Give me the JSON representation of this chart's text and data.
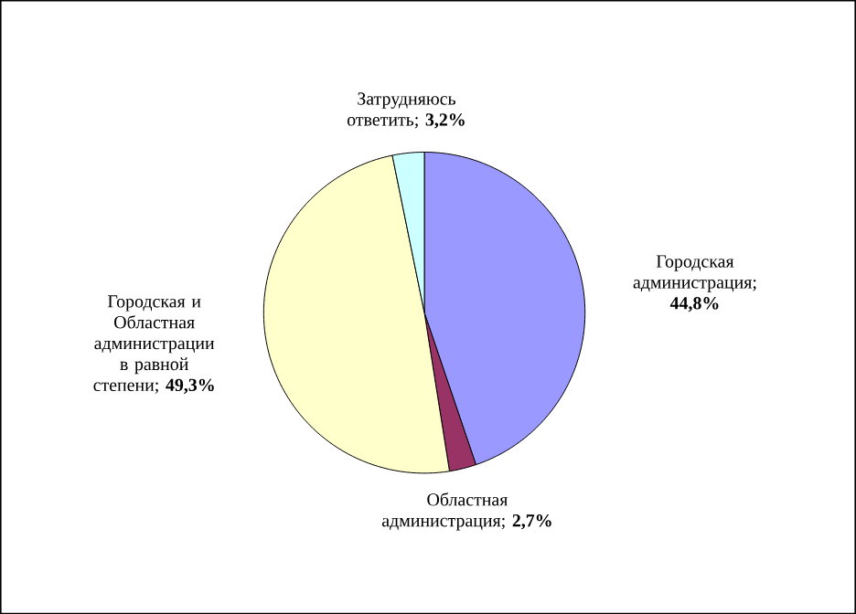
{
  "chart_data": {
    "type": "pie",
    "categories": [
      "Городская администрация",
      "Областная администрация",
      "Городская и Областная администрации в равной степени",
      "Затрудняюсь ответить"
    ],
    "values": [
      44.8,
      2.7,
      49.3,
      3.2
    ],
    "colors": [
      "#9999ff",
      "#993366",
      "#ffffcc",
      "#ccffff"
    ],
    "value_labels": [
      "; **44,8%**",
      "; **2,7%**",
      "; **49,3%**",
      "; **3,2%**"
    ]
  }
}
